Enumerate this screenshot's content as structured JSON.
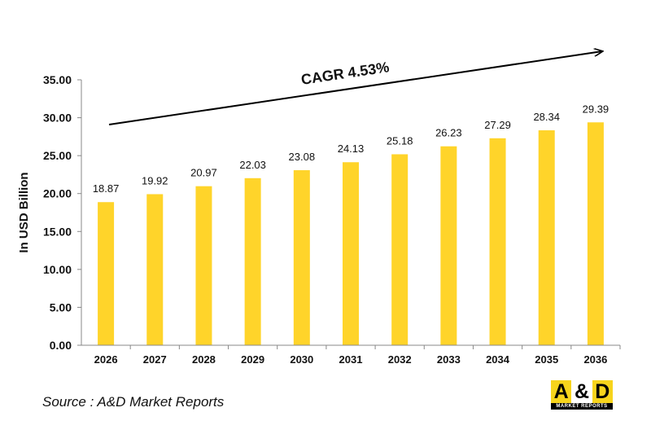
{
  "chart_data": {
    "type": "bar",
    "title": "",
    "xlabel": "",
    "ylabel": "In USD Billion",
    "categories": [
      "2026",
      "2027",
      "2028",
      "2029",
      "2030",
      "2031",
      "2032",
      "2033",
      "2034",
      "2035",
      "2036"
    ],
    "values": [
      18.87,
      19.92,
      20.97,
      22.03,
      23.08,
      24.13,
      25.18,
      26.23,
      27.29,
      28.34,
      29.39
    ],
    "value_labels": [
      "18.87",
      "19.92",
      "20.97",
      "22.03",
      "23.08",
      "24.13",
      "25.18",
      "26.23",
      "27.29",
      "28.34",
      "29.39"
    ],
    "ylim": [
      0,
      35
    ],
    "yticks": [
      "0.00",
      "5.00",
      "10.00",
      "15.00",
      "20.00",
      "25.00",
      "30.00",
      "35.00"
    ],
    "grid": false,
    "annotation": "CAGR 4.53%",
    "bar_color": "#FFD42A"
  },
  "source": "Source : A&D Market Reports",
  "logo": {
    "main": [
      "A",
      "&",
      "D"
    ],
    "sub": "MARKET REPORTS"
  }
}
